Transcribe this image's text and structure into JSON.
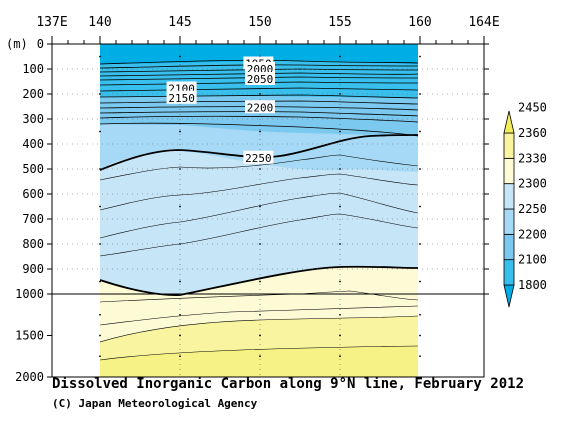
{
  "chart_data": {
    "type": "heatmap",
    "title": "Dissolved Inorganic Carbon along 9°N line, February 2012",
    "credit": "(C) Japan Meteorological Agency",
    "x_axis": {
      "range": [
        137,
        164
      ],
      "ticks": [
        {
          "value": 137,
          "label": "137E"
        },
        {
          "value": 140,
          "label": "140"
        },
        {
          "value": 145,
          "label": "145"
        },
        {
          "value": 150,
          "label": "150"
        },
        {
          "value": 155,
          "label": "155"
        },
        {
          "value": 160,
          "label": "160"
        },
        {
          "value": 164,
          "label": "164E"
        }
      ],
      "data_extent": [
        140,
        160
      ]
    },
    "y_axis": {
      "unit": "(m)",
      "upper_panel": {
        "range": [
          0,
          1000
        ],
        "ticks": [
          0,
          100,
          200,
          300,
          400,
          500,
          600,
          700,
          800,
          900,
          1000
        ]
      },
      "lower_panel": {
        "range": [
          1000,
          2000
        ],
        "ticks": [
          1500,
          2000
        ]
      },
      "labels": [
        "0",
        "100",
        "200",
        "300",
        "400",
        "500",
        "600",
        "700",
        "800",
        "900",
        "1000",
        "1500",
        "2000"
      ]
    },
    "colorbar": {
      "levels": [
        1800,
        2100,
        2200,
        2250,
        2300,
        2330,
        2360,
        2450
      ],
      "labels": [
        "1800",
        "2100",
        "2200",
        "2250",
        "2300",
        "2330",
        "2360",
        "2450"
      ],
      "colors": [
        "#00aee6",
        "#38bfec",
        "#7cc9ef",
        "#a6d9f5",
        "#c6e5f7",
        "#fdfad6",
        "#f8f49f",
        "#f4ed5a"
      ]
    },
    "contour_labels": [
      {
        "text": "1950",
        "x": 149.9,
        "y": 78
      },
      {
        "text": "2000",
        "x": 150.0,
        "y": 100
      },
      {
        "text": "2050",
        "x": 150.0,
        "y": 140
      },
      {
        "text": "2100",
        "x": 145.1,
        "y": 178
      },
      {
        "text": "2150",
        "x": 145.1,
        "y": 215
      },
      {
        "text": "2200",
        "x": 150.0,
        "y": 253
      },
      {
        "text": "2250",
        "x": 149.9,
        "y": 455
      }
    ],
    "stations": [
      140,
      145,
      150,
      155,
      160
    ],
    "section": {
      "lat": "9°N",
      "date": "February 2012",
      "variable": "Dissolved Inorganic Carbon",
      "surface_min": 1800,
      "thermocline_gradient_depth": [
        60,
        300
      ],
      "deep_max": 2360
    }
  }
}
